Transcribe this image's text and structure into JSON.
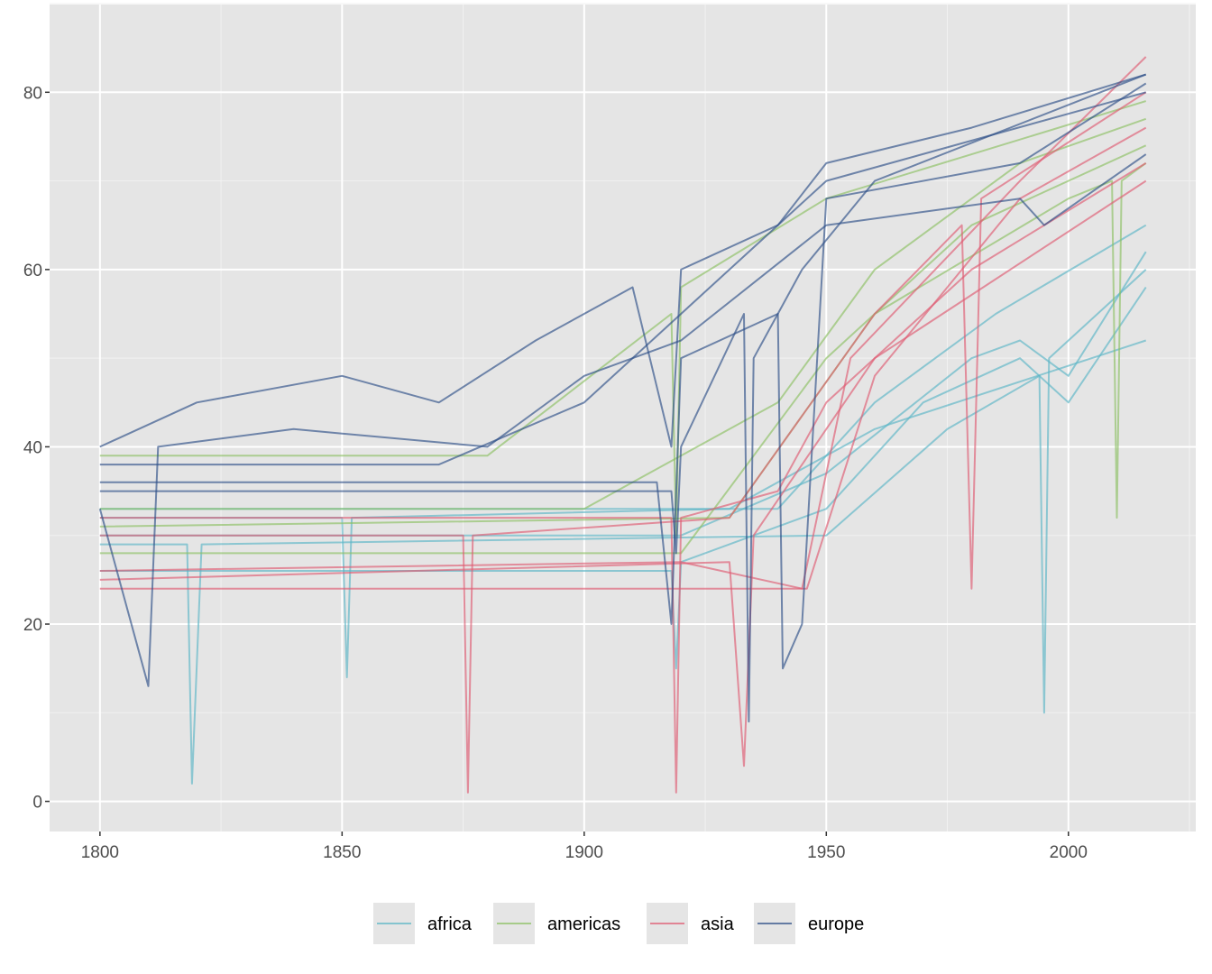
{
  "chart_data": {
    "type": "line",
    "title": "",
    "xlabel": "",
    "ylabel": "",
    "xlim": [
      1789.6,
      2026.3
    ],
    "ylim": [
      -3.4,
      89.9
    ],
    "grid": true,
    "x_ticks": [
      1800,
      1850,
      1900,
      1950,
      2000
    ],
    "y_ticks": [
      0,
      20,
      40,
      60,
      80
    ],
    "x_tick_labels": [
      "1800",
      "1850",
      "1900",
      "1950",
      "2000"
    ],
    "y_tick_labels": [
      "0",
      "20",
      "40",
      "60",
      "80"
    ],
    "legend_position": "bottom",
    "legend": [
      {
        "name": "africa",
        "color": "#5bb6c6"
      },
      {
        "name": "americas",
        "color": "#8cc062"
      },
      {
        "name": "asia",
        "color": "#df5b72"
      },
      {
        "name": "europe",
        "color": "#2d4f87"
      }
    ],
    "panel_background": "#e5e5e5",
    "series": [
      {
        "group": "africa",
        "points": [
          [
            1800,
            30
          ],
          [
            1920,
            30
          ],
          [
            1950,
            37
          ],
          [
            1980,
            50
          ],
          [
            1990,
            52
          ],
          [
            2000,
            48
          ],
          [
            2016,
            62
          ]
        ]
      },
      {
        "group": "africa",
        "points": [
          [
            1800,
            26
          ],
          [
            1918,
            26
          ],
          [
            1919,
            15
          ],
          [
            1920,
            27
          ],
          [
            1950,
            33
          ],
          [
            1970,
            45
          ],
          [
            1990,
            50
          ],
          [
            2000,
            45
          ],
          [
            2016,
            58
          ]
        ]
      },
      {
        "group": "africa",
        "points": [
          [
            1800,
            33
          ],
          [
            1940,
            33
          ],
          [
            1960,
            45
          ],
          [
            1985,
            55
          ],
          [
            2016,
            65
          ]
        ]
      },
      {
        "group": "africa",
        "points": [
          [
            1800,
            29
          ],
          [
            1818,
            29
          ],
          [
            1819,
            2
          ],
          [
            1821,
            29
          ],
          [
            1950,
            30
          ],
          [
            1975,
            42
          ],
          [
            1994,
            48
          ],
          [
            1995,
            10
          ],
          [
            1996,
            50
          ],
          [
            2016,
            60
          ]
        ]
      },
      {
        "group": "africa",
        "points": [
          [
            1800,
            32
          ],
          [
            1850,
            32
          ],
          [
            1851,
            14
          ],
          [
            1852,
            32
          ],
          [
            1930,
            33
          ],
          [
            1960,
            42
          ],
          [
            2016,
            52
          ]
        ]
      },
      {
        "group": "americas",
        "points": [
          [
            1800,
            39
          ],
          [
            1880,
            39
          ],
          [
            1918,
            55
          ],
          [
            1919,
            30
          ],
          [
            1920,
            58
          ],
          [
            1950,
            68
          ],
          [
            2016,
            79
          ]
        ]
      },
      {
        "group": "americas",
        "points": [
          [
            1800,
            33
          ],
          [
            1900,
            33
          ],
          [
            1940,
            45
          ],
          [
            1960,
            60
          ],
          [
            1990,
            72
          ],
          [
            2016,
            77
          ]
        ]
      },
      {
        "group": "americas",
        "points": [
          [
            1800,
            28
          ],
          [
            1920,
            28
          ],
          [
            1950,
            50
          ],
          [
            1980,
            65
          ],
          [
            2016,
            74
          ]
        ]
      },
      {
        "group": "americas",
        "points": [
          [
            1800,
            31
          ],
          [
            1930,
            32
          ],
          [
            1960,
            55
          ],
          [
            2000,
            68
          ],
          [
            2009,
            70
          ],
          [
            2010,
            32
          ],
          [
            2011,
            70
          ],
          [
            2016,
            72
          ]
        ]
      },
      {
        "group": "asia",
        "points": [
          [
            1800,
            24
          ],
          [
            1946,
            24
          ],
          [
            1960,
            48
          ],
          [
            1990,
            68
          ],
          [
            2016,
            76
          ]
        ]
      },
      {
        "group": "asia",
        "points": [
          [
            1800,
            30
          ],
          [
            1875,
            30
          ],
          [
            1876,
            1
          ],
          [
            1877,
            30
          ],
          [
            1930,
            32
          ],
          [
            1960,
            55
          ],
          [
            1978,
            65
          ],
          [
            1980,
            24
          ],
          [
            1982,
            68
          ],
          [
            2016,
            80
          ]
        ]
      },
      {
        "group": "asia",
        "points": [
          [
            1800,
            26
          ],
          [
            1920,
            27
          ],
          [
            1945,
            24
          ],
          [
            1955,
            50
          ],
          [
            1990,
            70
          ],
          [
            2016,
            84
          ]
        ]
      },
      {
        "group": "asia",
        "points": [
          [
            1800,
            32
          ],
          [
            1918,
            32
          ],
          [
            1919,
            1
          ],
          [
            1920,
            32
          ],
          [
            1940,
            35
          ],
          [
            1950,
            45
          ],
          [
            1980,
            60
          ],
          [
            2016,
            72
          ]
        ]
      },
      {
        "group": "asia",
        "points": [
          [
            1800,
            25
          ],
          [
            1930,
            27
          ],
          [
            1933,
            4
          ],
          [
            1935,
            30
          ],
          [
            1960,
            50
          ],
          [
            2016,
            70
          ]
        ]
      },
      {
        "group": "europe",
        "points": [
          [
            1800,
            40
          ],
          [
            1820,
            45
          ],
          [
            1850,
            48
          ],
          [
            1870,
            45
          ],
          [
            1890,
            52
          ],
          [
            1910,
            58
          ],
          [
            1918,
            40
          ],
          [
            1920,
            60
          ],
          [
            1940,
            65
          ],
          [
            1950,
            72
          ],
          [
            1980,
            76
          ],
          [
            2016,
            82
          ]
        ]
      },
      {
        "group": "europe",
        "points": [
          [
            1800,
            36
          ],
          [
            1915,
            36
          ],
          [
            1918,
            20
          ],
          [
            1920,
            50
          ],
          [
            1940,
            55
          ],
          [
            1941,
            15
          ],
          [
            1945,
            20
          ],
          [
            1950,
            68
          ],
          [
            1990,
            72
          ],
          [
            2016,
            81
          ]
        ]
      },
      {
        "group": "europe",
        "points": [
          [
            1800,
            38
          ],
          [
            1870,
            38
          ],
          [
            1900,
            45
          ],
          [
            1920,
            55
          ],
          [
            1950,
            70
          ],
          [
            2016,
            80
          ]
        ]
      },
      {
        "group": "europe",
        "points": [
          [
            1800,
            33
          ],
          [
            1810,
            13
          ],
          [
            1812,
            40
          ],
          [
            1840,
            42
          ],
          [
            1880,
            40
          ],
          [
            1900,
            48
          ],
          [
            1920,
            52
          ],
          [
            1950,
            65
          ],
          [
            1990,
            68
          ],
          [
            1995,
            65
          ],
          [
            2016,
            73
          ]
        ]
      },
      {
        "group": "europe",
        "points": [
          [
            1800,
            35
          ],
          [
            1918,
            35
          ],
          [
            1919,
            28
          ],
          [
            1920,
            40
          ],
          [
            1933,
            55
          ],
          [
            1934,
            9
          ],
          [
            1935,
            50
          ],
          [
            1945,
            60
          ],
          [
            1960,
            70
          ],
          [
            2016,
            82
          ]
        ]
      }
    ]
  }
}
